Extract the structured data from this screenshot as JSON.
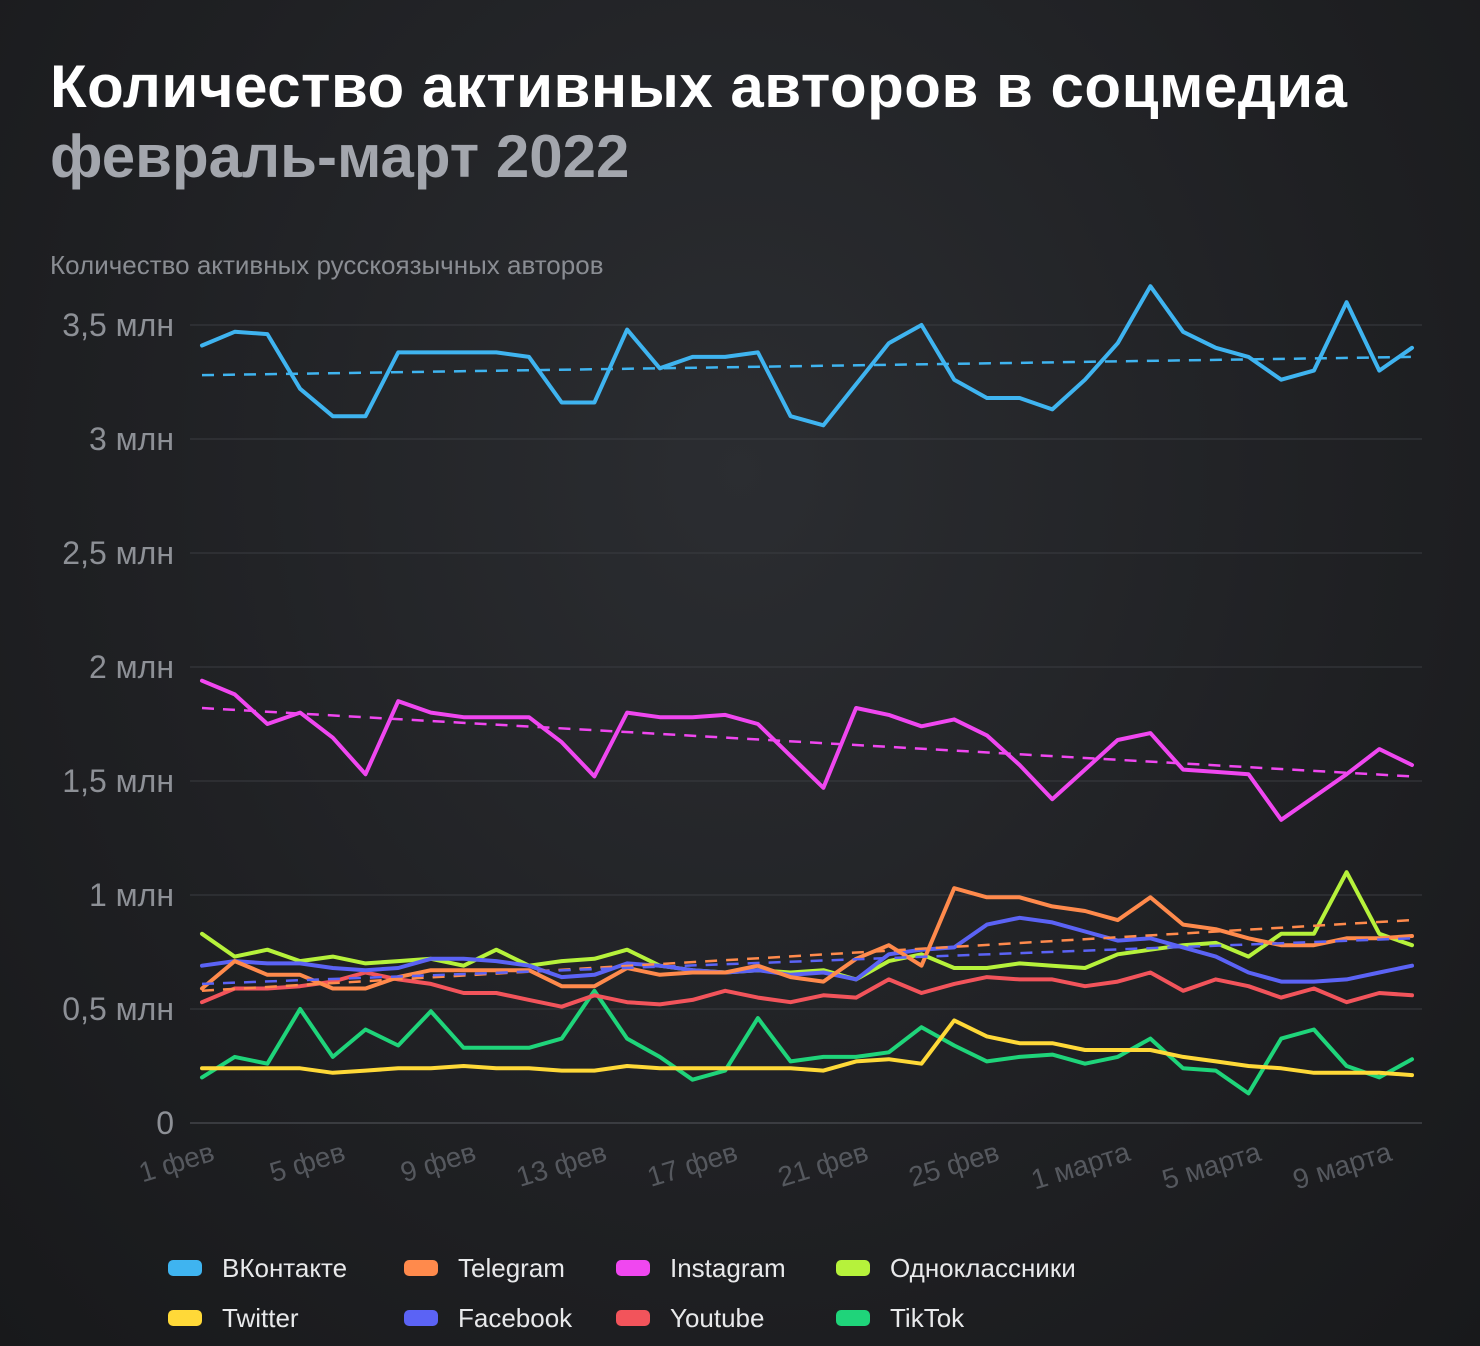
{
  "title": "Количество активных авторов в соцмедиа",
  "subtitle": "февраль-март 2022",
  "chart_data": {
    "type": "line",
    "ylabel": "Количество активных русскоязычных авторов",
    "ylim": [
      0,
      3.5
    ],
    "yticks": [
      {
        "value": 0,
        "label": "0"
      },
      {
        "value": 0.5,
        "label": "0,5 млн"
      },
      {
        "value": 1,
        "label": "1 млн"
      },
      {
        "value": 1.5,
        "label": "1,5 млн"
      },
      {
        "value": 2,
        "label": "2 млн"
      },
      {
        "value": 2.5,
        "label": "2,5 млн"
      },
      {
        "value": 3,
        "label": "3 млн"
      },
      {
        "value": 3.5,
        "label": "3,5 млн"
      }
    ],
    "n_points": 38,
    "xticks": [
      {
        "index": 0,
        "label": "1 фев"
      },
      {
        "index": 4,
        "label": "5 фев"
      },
      {
        "index": 8,
        "label": "9 фев"
      },
      {
        "index": 12,
        "label": "13 фев"
      },
      {
        "index": 16,
        "label": "17 фев"
      },
      {
        "index": 20,
        "label": "21 фев"
      },
      {
        "index": 24,
        "label": "25 фев"
      },
      {
        "index": 28,
        "label": "1 марта"
      },
      {
        "index": 32,
        "label": "5 марта"
      },
      {
        "index": 36,
        "label": "9 марта"
      }
    ],
    "series": [
      {
        "name": "ВКонтакте",
        "color": "#3fb4f0",
        "trend": [
          3.28,
          3.36
        ],
        "values": [
          3.41,
          3.47,
          3.46,
          3.22,
          3.1,
          3.1,
          3.38,
          3.38,
          3.38,
          3.38,
          3.36,
          3.16,
          3.16,
          3.48,
          3.31,
          3.36,
          3.36,
          3.38,
          3.1,
          3.06,
          3.24,
          3.42,
          3.5,
          3.26,
          3.18,
          3.18,
          3.13,
          3.26,
          3.42,
          3.67,
          3.47,
          3.4,
          3.36,
          3.26,
          3.3,
          3.6,
          3.3,
          3.4
        ]
      },
      {
        "name": "Telegram",
        "color": "#ff8a4c",
        "trend": [
          0.58,
          0.89
        ],
        "values": [
          0.59,
          0.71,
          0.65,
          0.65,
          0.59,
          0.59,
          0.64,
          0.67,
          0.67,
          0.67,
          0.67,
          0.6,
          0.6,
          0.68,
          0.65,
          0.66,
          0.66,
          0.69,
          0.64,
          0.62,
          0.72,
          0.78,
          0.69,
          1.03,
          0.99,
          0.99,
          0.95,
          0.93,
          0.89,
          0.99,
          0.87,
          0.85,
          0.81,
          0.78,
          0.78,
          0.81,
          0.81,
          0.82
        ]
      },
      {
        "name": "Instagram",
        "color": "#f047f0",
        "trend": [
          1.82,
          1.52
        ],
        "values": [
          1.94,
          1.88,
          1.75,
          1.8,
          1.69,
          1.53,
          1.85,
          1.8,
          1.78,
          1.78,
          1.78,
          1.67,
          1.52,
          1.8,
          1.78,
          1.78,
          1.79,
          1.75,
          1.61,
          1.47,
          1.82,
          1.79,
          1.74,
          1.77,
          1.7,
          1.57,
          1.42,
          1.55,
          1.68,
          1.71,
          1.55,
          1.54,
          1.53,
          1.33,
          1.43,
          1.53,
          1.64,
          1.57
        ]
      },
      {
        "name": "Одноклассники",
        "color": "#b6f23b",
        "trend": null,
        "values": [
          0.83,
          0.73,
          0.76,
          0.71,
          0.73,
          0.7,
          0.71,
          0.72,
          0.69,
          0.76,
          0.69,
          0.71,
          0.72,
          0.76,
          0.69,
          0.67,
          0.66,
          0.67,
          0.66,
          0.67,
          0.63,
          0.71,
          0.74,
          0.68,
          0.68,
          0.7,
          0.69,
          0.68,
          0.74,
          0.76,
          0.78,
          0.79,
          0.73,
          0.83,
          0.83,
          1.1,
          0.83,
          0.78
        ]
      },
      {
        "name": "Twitter",
        "color": "#ffd938",
        "trend": null,
        "values": [
          0.24,
          0.24,
          0.24,
          0.24,
          0.22,
          0.23,
          0.24,
          0.24,
          0.25,
          0.24,
          0.24,
          0.23,
          0.23,
          0.25,
          0.24,
          0.24,
          0.24,
          0.24,
          0.24,
          0.23,
          0.27,
          0.28,
          0.26,
          0.45,
          0.38,
          0.35,
          0.35,
          0.32,
          0.32,
          0.32,
          0.29,
          0.27,
          0.25,
          0.24,
          0.22,
          0.22,
          0.22,
          0.21
        ]
      },
      {
        "name": "Facebook",
        "color": "#5b63f5",
        "trend": [
          0.61,
          0.81
        ],
        "values": [
          0.69,
          0.71,
          0.7,
          0.7,
          0.68,
          0.67,
          0.68,
          0.72,
          0.72,
          0.71,
          0.69,
          0.64,
          0.65,
          0.7,
          0.69,
          0.67,
          0.66,
          0.67,
          0.65,
          0.66,
          0.63,
          0.74,
          0.76,
          0.77,
          0.87,
          0.9,
          0.88,
          0.84,
          0.8,
          0.81,
          0.77,
          0.73,
          0.66,
          0.62,
          0.62,
          0.63,
          0.66,
          0.69
        ]
      },
      {
        "name": "Youtube",
        "color": "#f2545b",
        "trend": null,
        "values": [
          0.53,
          0.59,
          0.59,
          0.6,
          0.62,
          0.66,
          0.63,
          0.61,
          0.57,
          0.57,
          0.54,
          0.51,
          0.56,
          0.53,
          0.52,
          0.54,
          0.58,
          0.55,
          0.53,
          0.56,
          0.55,
          0.63,
          0.57,
          0.61,
          0.64,
          0.63,
          0.63,
          0.6,
          0.62,
          0.66,
          0.58,
          0.63,
          0.6,
          0.55,
          0.59,
          0.53,
          0.57,
          0.56
        ]
      },
      {
        "name": "TikTok",
        "color": "#1fd47a",
        "trend": null,
        "values": [
          0.2,
          0.29,
          0.26,
          0.5,
          0.29,
          0.41,
          0.34,
          0.49,
          0.33,
          0.33,
          0.33,
          0.37,
          0.58,
          0.37,
          0.29,
          0.19,
          0.23,
          0.46,
          0.27,
          0.29,
          0.29,
          0.31,
          0.42,
          0.34,
          0.27,
          0.29,
          0.3,
          0.26,
          0.29,
          0.37,
          0.24,
          0.23,
          0.13,
          0.37,
          0.41,
          0.25,
          0.2,
          0.28
        ]
      }
    ]
  }
}
